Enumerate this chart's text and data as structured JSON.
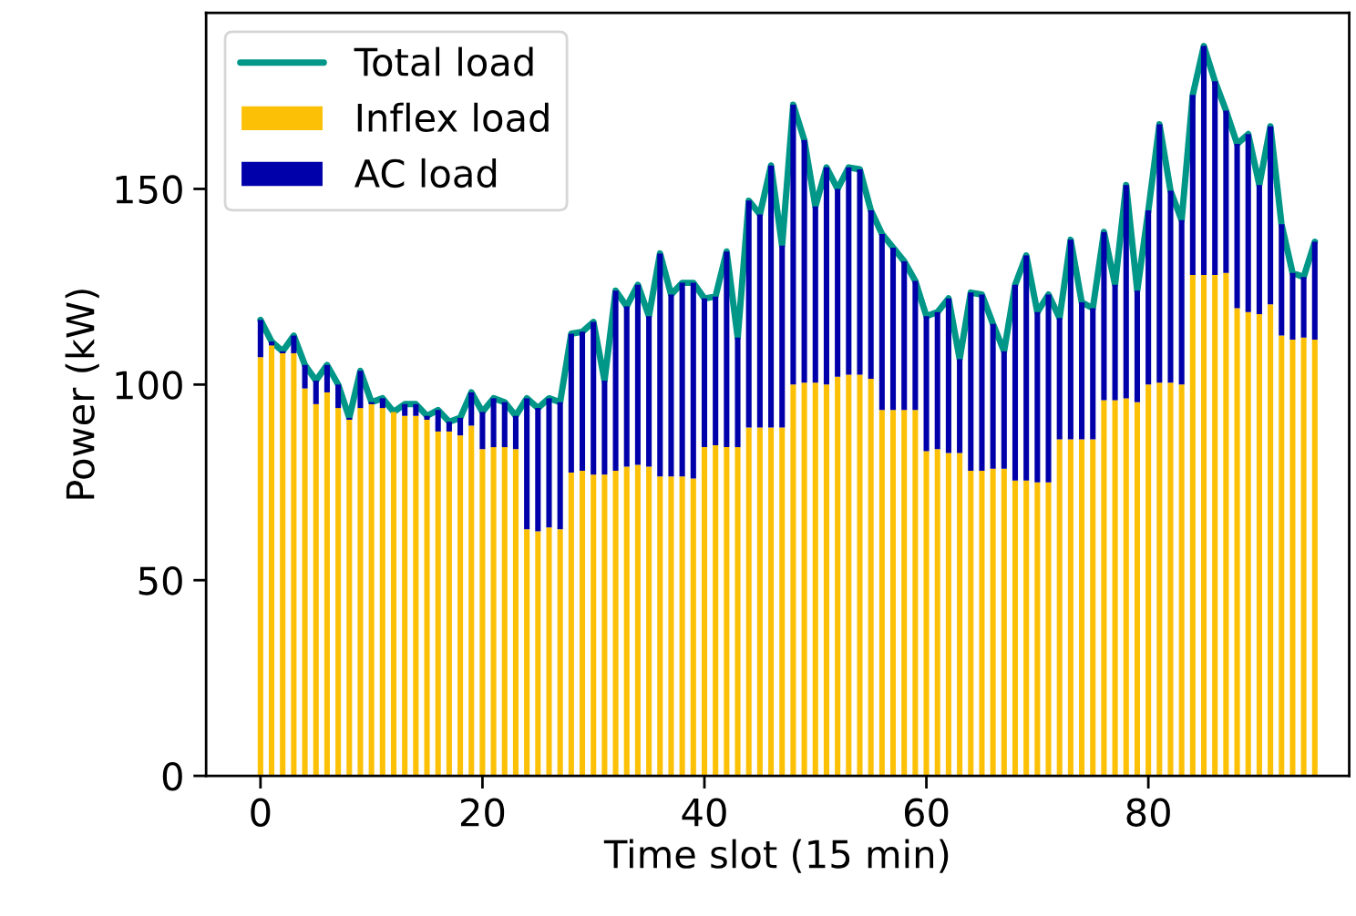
{
  "chart_data": {
    "type": "bar",
    "stacked": true,
    "xlabel": "Time slot (15 min)",
    "ylabel": "Power (kW)",
    "x": [
      0,
      1,
      2,
      3,
      4,
      5,
      6,
      7,
      8,
      9,
      10,
      11,
      12,
      13,
      14,
      15,
      16,
      17,
      18,
      19,
      20,
      21,
      22,
      23,
      24,
      25,
      26,
      27,
      28,
      29,
      30,
      31,
      32,
      33,
      34,
      35,
      36,
      37,
      38,
      39,
      40,
      41,
      42,
      43,
      44,
      45,
      46,
      47,
      48,
      49,
      50,
      51,
      52,
      53,
      54,
      55,
      56,
      57,
      58,
      59,
      60,
      61,
      62,
      63,
      64,
      65,
      66,
      67,
      68,
      69,
      70,
      71,
      72,
      73,
      74,
      75,
      76,
      77,
      78,
      79,
      80,
      81,
      82,
      83,
      84,
      85,
      86,
      87,
      88,
      89,
      90,
      91,
      92,
      93,
      94,
      95
    ],
    "series": [
      {
        "name": "Inflex load",
        "color": "#fcc107",
        "values": [
          107,
          110,
          108,
          108,
          99,
          95,
          98,
          94,
          91,
          94,
          95,
          94,
          93,
          92,
          92,
          91,
          88,
          88,
          87,
          89.5,
          83.5,
          84,
          84,
          83.5,
          63,
          62.5,
          63.5,
          63,
          77.5,
          78,
          77,
          77,
          78,
          79,
          79.5,
          79,
          76.5,
          76.5,
          76.5,
          76,
          84,
          84.5,
          84,
          84,
          89,
          89,
          89,
          89,
          100,
          100.5,
          100.5,
          100,
          102,
          102.5,
          102.5,
          101.5,
          93.5,
          93.5,
          93.5,
          93.5,
          83,
          83.5,
          82.5,
          82.5,
          78,
          78,
          78.5,
          78.5,
          75.5,
          75.5,
          75,
          75,
          86,
          86,
          86,
          86,
          96,
          96,
          96.5,
          95.5,
          100,
          100.5,
          100.5,
          100,
          128,
          128,
          128,
          128.5,
          119.5,
          118.5,
          118,
          120.5,
          112.5,
          111.5,
          112,
          111.5
        ]
      },
      {
        "name": "AC load",
        "color": "#0000aa",
        "values": [
          9.5,
          1,
          0.5,
          4.5,
          6,
          6,
          7,
          6,
          0.5,
          9.5,
          0.5,
          2.5,
          0,
          3,
          3,
          1,
          5.5,
          2.5,
          4.5,
          8.5,
          9.5,
          12.5,
          11.5,
          8.5,
          33.5,
          31.5,
          33,
          32.5,
          35.5,
          35.5,
          39,
          24,
          46,
          41,
          46,
          38.5,
          57,
          46.5,
          49.5,
          50,
          38,
          38,
          50,
          28,
          58,
          54.5,
          67,
          46.5,
          71.5,
          62,
          45,
          55.5,
          48,
          53,
          52.5,
          43,
          45,
          41.5,
          38,
          33,
          34.5,
          35,
          39.5,
          24,
          45.5,
          45,
          37,
          30,
          50,
          57.5,
          43.5,
          48,
          31,
          51,
          35,
          33.5,
          43,
          29.5,
          54.5,
          28.5,
          44.5,
          66,
          49,
          42,
          46,
          58.5,
          49.5,
          41.5,
          42,
          45.5,
          33,
          45.5,
          28.5,
          17,
          15.5,
          25
        ]
      },
      {
        "name": "Total load",
        "type": "line",
        "color": "#009688",
        "values": [
          116.5,
          111,
          108.5,
          112.5,
          105,
          101,
          105,
          100,
          91.5,
          103.5,
          95.5,
          96.5,
          93,
          95,
          95,
          92,
          93.5,
          90.5,
          91.5,
          98,
          93,
          96.5,
          95.5,
          92,
          96.5,
          94,
          96.5,
          95.5,
          113,
          113.5,
          116,
          101,
          124,
          120,
          125.5,
          117.5,
          133.5,
          123,
          126,
          126,
          122,
          122.5,
          134,
          112,
          147,
          143.5,
          156,
          135.5,
          171.5,
          162.5,
          145.5,
          155.5,
          150,
          155.5,
          155,
          144.5,
          138.5,
          135,
          131.5,
          126.5,
          117.5,
          118.5,
          122,
          106.5,
          123.5,
          123,
          115.5,
          108.5,
          125.5,
          133,
          118.5,
          123,
          117,
          137,
          121,
          119.5,
          139,
          125.5,
          151,
          124,
          144.5,
          166.5,
          149.5,
          142,
          174,
          186.5,
          177.5,
          170,
          161.5,
          164,
          151,
          166,
          141,
          128.5,
          127.5,
          136.5
        ]
      }
    ],
    "xlim": [
      -4.9,
      98.1
    ],
    "ylim": [
      0,
      195
    ],
    "xticks": [
      0,
      20,
      40,
      60,
      80
    ],
    "yticks": [
      0,
      50,
      100,
      150
    ],
    "grid": false,
    "legend": "top left"
  }
}
